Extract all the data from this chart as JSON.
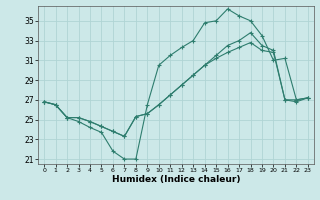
{
  "bg_color": "#cce8e8",
  "grid_color": "#b0d4d4",
  "line_color": "#2e7d6e",
  "xlabel": "Humidex (Indice chaleur)",
  "xlim": [
    -0.5,
    23.5
  ],
  "ylim": [
    20.5,
    36.5
  ],
  "yticks": [
    21,
    23,
    25,
    27,
    29,
    31,
    33,
    35
  ],
  "xticks": [
    0,
    1,
    2,
    3,
    4,
    5,
    6,
    7,
    8,
    9,
    10,
    11,
    12,
    13,
    14,
    15,
    16,
    17,
    18,
    19,
    20,
    21,
    22,
    23
  ],
  "line1_x": [
    0,
    1,
    2,
    3,
    4,
    5,
    6,
    7,
    8,
    9,
    10,
    11,
    12,
    13,
    14,
    15,
    16,
    17,
    18,
    19,
    20,
    21,
    22,
    23
  ],
  "line1_y": [
    26.8,
    26.5,
    25.2,
    24.8,
    24.2,
    23.7,
    21.8,
    21.0,
    21.0,
    26.5,
    30.5,
    31.5,
    32.3,
    33.0,
    34.8,
    35.0,
    36.2,
    35.5,
    35.0,
    33.5,
    31.0,
    31.2,
    27.0,
    27.2
  ],
  "line2_x": [
    0,
    1,
    2,
    3,
    4,
    5,
    6,
    7,
    8,
    9,
    10,
    11,
    12,
    13,
    14,
    15,
    16,
    17,
    18,
    19,
    20,
    21,
    22,
    23
  ],
  "line2_y": [
    26.8,
    26.5,
    25.2,
    25.2,
    24.8,
    24.3,
    23.8,
    23.3,
    25.3,
    25.6,
    26.5,
    27.5,
    28.5,
    29.5,
    30.5,
    31.5,
    32.5,
    33.0,
    33.8,
    32.5,
    32.0,
    27.0,
    27.0,
    27.2
  ],
  "line3_x": [
    0,
    1,
    2,
    3,
    4,
    5,
    6,
    7,
    8,
    9,
    10,
    11,
    12,
    13,
    14,
    15,
    16,
    17,
    18,
    19,
    20,
    21,
    22,
    23
  ],
  "line3_y": [
    26.8,
    26.5,
    25.2,
    25.2,
    24.8,
    24.3,
    23.8,
    23.3,
    25.3,
    25.6,
    26.5,
    27.5,
    28.5,
    29.5,
    30.5,
    31.2,
    31.8,
    32.3,
    32.8,
    32.0,
    31.8,
    27.0,
    26.8,
    27.2
  ]
}
